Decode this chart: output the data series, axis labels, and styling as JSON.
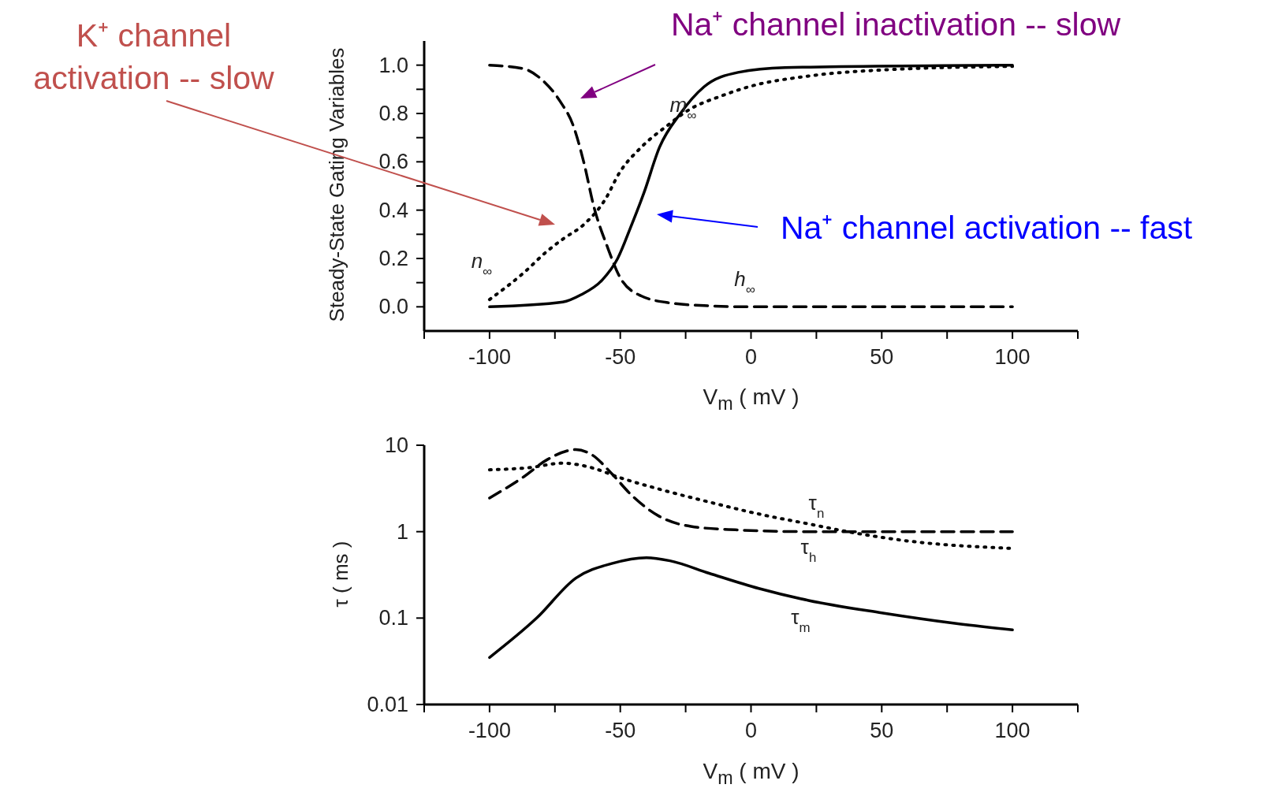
{
  "chart_data": [
    {
      "type": "line",
      "xlabel": "V$_{m}$ ( mV )",
      "ylabel": "Steady-State Gating Variables",
      "xlim": [
        -125,
        125
      ],
      "xticks": [
        {
          "value": -125,
          "label": null
        },
        -100,
        {
          "value": -75,
          "label": null
        },
        -50,
        {
          "value": -25,
          "label": null
        },
        0,
        {
          "value": 25,
          "label": null
        },
        50,
        {
          "value": 75,
          "label": null
        },
        100,
        {
          "value": 125,
          "label": null
        }
      ],
      "ylim": [
        -0.1,
        1.1
      ],
      "yticks": [
        {
          "value": 0,
          "label": "0.0"
        },
        {
          "value": 0.1,
          "label": null
        },
        {
          "value": 0.2,
          "label": "0.2"
        },
        {
          "value": 0.3,
          "label": null
        },
        {
          "value": 0.4,
          "label": "0.4"
        },
        {
          "value": 0.5,
          "label": null
        },
        {
          "value": 0.6,
          "label": "0.6"
        },
        {
          "value": 0.7,
          "label": null
        },
        {
          "value": 0.8,
          "label": "0.8"
        },
        {
          "value": 0.9,
          "label": null
        },
        {
          "value": 1,
          "label": "1.0"
        }
      ],
      "series": [
        {
          "name": "m$_{∞}$",
          "color": "#000000",
          "line_style": "solid",
          "x": [
            -100,
            -72,
            -65,
            -57,
            -51,
            -46,
            -41,
            -35,
            -27,
            -18,
            -5,
            13,
            100
          ],
          "values": [
            0,
            0.02,
            0.05,
            0.11,
            0.2,
            0.33,
            0.47,
            0.66,
            0.8,
            0.91,
            0.97,
            0.99,
            1.0
          ]
        },
        {
          "name": "n$_{∞}$",
          "color": "#000000",
          "line_style": "dotted",
          "x": [
            -100,
            -87,
            -78,
            -72,
            -64,
            -56,
            -50,
            -42,
            -32,
            -23,
            -12,
            -1,
            22,
            50,
            100
          ],
          "values": [
            0.03,
            0.14,
            0.23,
            0.28,
            0.34,
            0.44,
            0.56,
            0.66,
            0.75,
            0.82,
            0.87,
            0.91,
            0.955,
            0.98,
            0.995
          ]
        },
        {
          "name": "h$_{∞}$",
          "color": "#000000",
          "line_style": "dashed",
          "x": [
            -100,
            -87,
            -80,
            -73,
            -68,
            -64,
            -60,
            -55,
            -50,
            -42,
            -31,
            -16,
            0,
            100
          ],
          "values": [
            1.0,
            0.985,
            0.94,
            0.85,
            0.75,
            0.6,
            0.41,
            0.25,
            0.12,
            0.045,
            0.016,
            0.004,
            0,
            0
          ]
        }
      ],
      "annotations": [
        "K⁺ channel activation -- slow",
        "Na⁺ channel inactivation -- slow",
        "Na⁺ channel activation -- fast"
      ]
    },
    {
      "type": "line",
      "xlabel": "V$_{m}$ ( mV )",
      "ylabel": "τ ( ms )",
      "log": "y",
      "xlim": [
        -125,
        125
      ],
      "xticks": [
        {
          "value": -125,
          "label": null
        },
        -100,
        {
          "value": -75,
          "label": null
        },
        -50,
        {
          "value": -25,
          "label": null
        },
        0,
        {
          "value": 25,
          "label": null
        },
        50,
        {
          "value": 75,
          "label": null
        },
        100,
        {
          "value": 125,
          "label": null
        }
      ],
      "ylim": [
        0.01,
        10
      ],
      "yticks": [
        0.01,
        0.1,
        1,
        10
      ],
      "series": [
        {
          "name": "τ$_{n}$",
          "color": "#000000",
          "line_style": "dotted",
          "x": [
            -100,
            -85,
            -72,
            -61,
            -50,
            -35,
            -16,
            3,
            22,
            41,
            60,
            100
          ],
          "values": [
            5.2,
            5.5,
            6.2,
            5.5,
            4.2,
            3.1,
            2.2,
            1.6,
            1.23,
            0.95,
            0.78,
            0.64
          ]
        },
        {
          "name": "τ$_{h}$",
          "color": "#000000",
          "line_style": "dashed",
          "x": [
            -100,
            -87,
            -78,
            -67,
            -61,
            -53,
            -46,
            -35,
            -23,
            -6,
            22,
            100
          ],
          "values": [
            2.45,
            4.3,
            6.8,
            8.9,
            7.8,
            4.6,
            2.7,
            1.5,
            1.15,
            1.05,
            1.0,
            1.0
          ]
        },
        {
          "name": "τ$_{m}$",
          "color": "#000000",
          "line_style": "solid",
          "x": [
            -100,
            -82,
            -67,
            -53,
            -40,
            -31,
            -16,
            3,
            22,
            50,
            78,
            100
          ],
          "values": [
            0.035,
            0.1,
            0.29,
            0.43,
            0.5,
            0.46,
            0.33,
            0.22,
            0.16,
            0.115,
            0.087,
            0.073
          ]
        }
      ]
    }
  ]
}
